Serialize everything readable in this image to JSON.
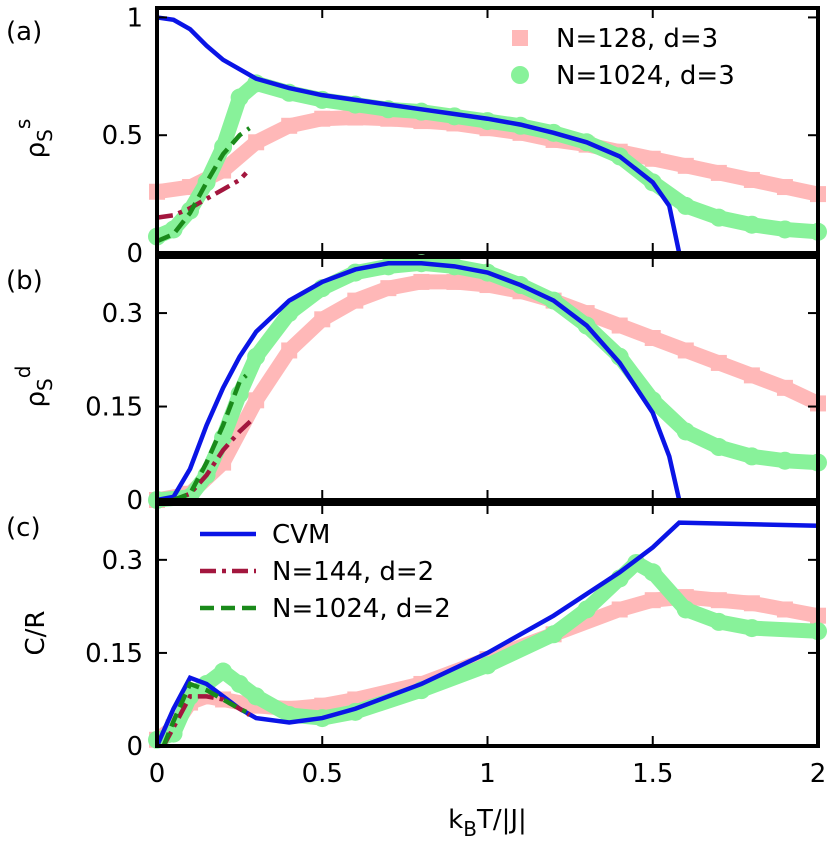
{
  "chart_data": [
    {
      "type": "line",
      "panel": "(a)",
      "ylabel": "ρ",
      "ylabel_sub": "S",
      "ylabel_sup": "s",
      "xlim": [
        0,
        2
      ],
      "ylim": [
        0,
        1.04
      ],
      "yticks": [
        0,
        0.5,
        1
      ],
      "legend": "top-right",
      "series": [
        {
          "name": "N=128, d=3",
          "color": "#ffb8b8",
          "style": "squares",
          "x": [
            0,
            0.1,
            0.2,
            0.3,
            0.4,
            0.5,
            0.6,
            0.7,
            0.8,
            0.9,
            1.0,
            1.1,
            1.2,
            1.3,
            1.4,
            1.5,
            1.6,
            1.7,
            1.8,
            1.9,
            2.0
          ],
          "values": [
            0.26,
            0.28,
            0.35,
            0.47,
            0.54,
            0.57,
            0.575,
            0.57,
            0.56,
            0.55,
            0.53,
            0.51,
            0.48,
            0.46,
            0.43,
            0.4,
            0.37,
            0.34,
            0.31,
            0.28,
            0.25
          ]
        },
        {
          "name": "N=1024, d=3",
          "color": "#88f29a",
          "style": "circles",
          "x": [
            0,
            0.05,
            0.1,
            0.15,
            0.2,
            0.25,
            0.3,
            0.4,
            0.5,
            0.6,
            0.7,
            0.8,
            0.9,
            1.0,
            1.1,
            1.2,
            1.3,
            1.4,
            1.5,
            1.6,
            1.7,
            1.8,
            1.9,
            2.0
          ],
          "values": [
            0.07,
            0.1,
            0.18,
            0.3,
            0.45,
            0.66,
            0.72,
            0.68,
            0.65,
            0.63,
            0.61,
            0.6,
            0.58,
            0.56,
            0.54,
            0.51,
            0.47,
            0.41,
            0.3,
            0.2,
            0.15,
            0.12,
            0.1,
            0.09
          ]
        },
        {
          "color": "#0a14e6",
          "style": "solid",
          "x": [
            0,
            0.05,
            0.1,
            0.15,
            0.2,
            0.3,
            0.4,
            0.5,
            0.6,
            0.7,
            0.8,
            0.9,
            1.0,
            1.1,
            1.2,
            1.3,
            1.4,
            1.5,
            1.55,
            1.58
          ],
          "values": [
            1.0,
            0.99,
            0.95,
            0.88,
            0.82,
            0.74,
            0.7,
            0.67,
            0.65,
            0.63,
            0.61,
            0.59,
            0.57,
            0.545,
            0.51,
            0.47,
            0.41,
            0.3,
            0.2,
            0
          ]
        },
        {
          "color": "#a3163e",
          "style": "dashdot",
          "x": [
            0,
            0.05,
            0.1,
            0.15,
            0.2,
            0.25,
            0.27
          ],
          "values": [
            0.15,
            0.16,
            0.19,
            0.23,
            0.27,
            0.31,
            0.34
          ]
        },
        {
          "color": "#1a8a1a",
          "style": "dashed",
          "x": [
            0,
            0.05,
            0.1,
            0.15,
            0.2,
            0.25,
            0.28
          ],
          "values": [
            0.05,
            0.08,
            0.17,
            0.3,
            0.42,
            0.5,
            0.53
          ]
        }
      ]
    },
    {
      "type": "line",
      "panel": "(b)",
      "ylabel": "ρ",
      "ylabel_sub": "S",
      "ylabel_sup": "d",
      "xlim": [
        0,
        2
      ],
      "ylim": [
        0,
        0.39
      ],
      "yticks": [
        0,
        0.15,
        0.3
      ],
      "series": [
        {
          "color": "#ffb8b8",
          "style": "squares",
          "x": [
            0,
            0.1,
            0.2,
            0.3,
            0.4,
            0.5,
            0.6,
            0.7,
            0.8,
            0.9,
            1.0,
            1.1,
            1.2,
            1.3,
            1.4,
            1.5,
            1.6,
            1.7,
            1.8,
            1.9,
            2.0
          ],
          "values": [
            0,
            0.01,
            0.06,
            0.16,
            0.24,
            0.29,
            0.32,
            0.34,
            0.35,
            0.35,
            0.345,
            0.335,
            0.32,
            0.3,
            0.28,
            0.26,
            0.24,
            0.22,
            0.2,
            0.18,
            0.155
          ]
        },
        {
          "color": "#88f29a",
          "style": "circles",
          "x": [
            0,
            0.1,
            0.15,
            0.2,
            0.25,
            0.3,
            0.4,
            0.5,
            0.6,
            0.7,
            0.8,
            0.9,
            1.0,
            1.1,
            1.2,
            1.3,
            1.4,
            1.5,
            1.6,
            1.7,
            1.8,
            1.9,
            2.0
          ],
          "values": [
            0,
            0.005,
            0.04,
            0.1,
            0.17,
            0.23,
            0.3,
            0.34,
            0.365,
            0.375,
            0.38,
            0.375,
            0.365,
            0.345,
            0.32,
            0.28,
            0.23,
            0.16,
            0.11,
            0.085,
            0.07,
            0.063,
            0.06
          ]
        },
        {
          "color": "#0a14e6",
          "style": "solid",
          "x": [
            0,
            0.05,
            0.1,
            0.15,
            0.2,
            0.25,
            0.3,
            0.4,
            0.5,
            0.6,
            0.7,
            0.8,
            0.9,
            1.0,
            1.1,
            1.2,
            1.3,
            1.4,
            1.5,
            1.55,
            1.58
          ],
          "values": [
            0,
            0.005,
            0.05,
            0.12,
            0.18,
            0.23,
            0.27,
            0.32,
            0.35,
            0.37,
            0.38,
            0.38,
            0.375,
            0.365,
            0.345,
            0.32,
            0.28,
            0.22,
            0.14,
            0.07,
            0
          ]
        },
        {
          "color": "#a3163e",
          "style": "dashdot",
          "x": [
            0.05,
            0.1,
            0.15,
            0.2,
            0.25,
            0.29
          ],
          "values": [
            0,
            0.01,
            0.04,
            0.08,
            0.11,
            0.13
          ]
        },
        {
          "color": "#1a8a1a",
          "style": "dashed",
          "x": [
            0.05,
            0.1,
            0.15,
            0.2,
            0.25,
            0.27
          ],
          "values": [
            0,
            0.01,
            0.06,
            0.12,
            0.19,
            0.2
          ]
        }
      ]
    },
    {
      "type": "line",
      "panel": "(c)",
      "ylabel": "C/R",
      "xlabel": [
        "k",
        "B",
        "T/|J|"
      ],
      "xlim": [
        0,
        2
      ],
      "ylim": [
        0,
        0.39
      ],
      "yticks": [
        0,
        0.15,
        0.3
      ],
      "xticks": [
        0,
        0.5,
        1,
        1.5,
        2
      ],
      "legend": "top-left",
      "series": [
        {
          "color": "#ffb8b8",
          "style": "squares",
          "x": [
            0,
            0.05,
            0.1,
            0.15,
            0.2,
            0.3,
            0.4,
            0.5,
            0.6,
            0.8,
            1.0,
            1.2,
            1.4,
            1.5,
            1.6,
            1.7,
            1.8,
            1.9,
            2.0
          ],
          "values": [
            0.01,
            0.03,
            0.07,
            0.08,
            0.075,
            0.065,
            0.06,
            0.065,
            0.075,
            0.1,
            0.14,
            0.18,
            0.22,
            0.235,
            0.24,
            0.235,
            0.23,
            0.22,
            0.21
          ]
        },
        {
          "color": "#88f29a",
          "style": "circles",
          "x": [
            0,
            0.05,
            0.1,
            0.15,
            0.2,
            0.25,
            0.3,
            0.4,
            0.5,
            0.6,
            0.8,
            1.0,
            1.2,
            1.3,
            1.4,
            1.45,
            1.5,
            1.6,
            1.7,
            1.8,
            2.0
          ],
          "values": [
            0.01,
            0.02,
            0.08,
            0.1,
            0.12,
            0.1,
            0.08,
            0.05,
            0.045,
            0.055,
            0.09,
            0.13,
            0.18,
            0.22,
            0.27,
            0.295,
            0.28,
            0.22,
            0.2,
            0.19,
            0.185
          ]
        },
        {
          "name": "CVM",
          "color": "#0a14e6",
          "style": "solid",
          "x": [
            0,
            0.05,
            0.1,
            0.15,
            0.2,
            0.25,
            0.3,
            0.4,
            0.5,
            0.6,
            0.8,
            1.0,
            1.2,
            1.4,
            1.5,
            1.58,
            2.0
          ],
          "values": [
            0,
            0.06,
            0.11,
            0.1,
            0.08,
            0.06,
            0.045,
            0.038,
            0.045,
            0.06,
            0.1,
            0.15,
            0.21,
            0.28,
            0.32,
            0.36,
            0.355
          ]
        },
        {
          "name": "N=144, d=2",
          "color": "#a3163e",
          "style": "dashdot",
          "x": [
            0.02,
            0.05,
            0.1,
            0.15,
            0.2,
            0.25,
            0.28
          ],
          "values": [
            0,
            0.03,
            0.08,
            0.08,
            0.075,
            0.06,
            0.05
          ]
        },
        {
          "name": "N=1024, d=2",
          "color": "#1a8a1a",
          "style": "dashed",
          "x": [
            0.02,
            0.05,
            0.1,
            0.15,
            0.2,
            0.25,
            0.27
          ],
          "values": [
            0,
            0.04,
            0.1,
            0.09,
            0.075,
            0.06,
            0.055
          ]
        }
      ]
    }
  ]
}
